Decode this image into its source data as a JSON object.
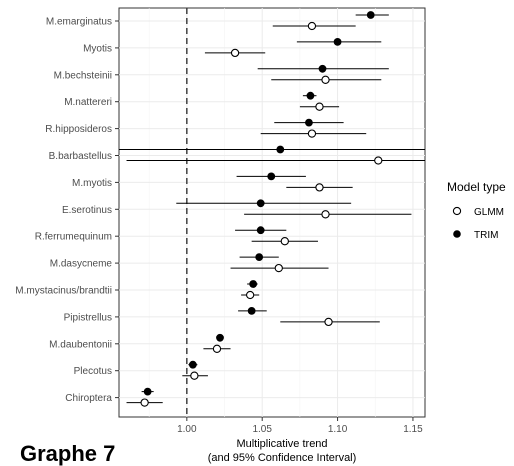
{
  "caption": "Graphe 7",
  "chart_data": {
    "type": "scatter",
    "title": "",
    "xlabel_line1": "Multiplicative trend",
    "xlabel_line2": "(and 95% Confidence Interval)",
    "ylabel": "",
    "xlim": [
      0.955,
      1.158
    ],
    "x_ticks": [
      1.0,
      1.05,
      1.1,
      1.15
    ],
    "x_tick_labels": [
      "1.00",
      "1.05",
      "1.10",
      "1.15"
    ],
    "reference_line": 1.0,
    "grid": true,
    "legend_position": "right",
    "legend_title": "Model type",
    "series": [
      {
        "name": "GLMM",
        "marker": "open-circle",
        "color": "#000000"
      },
      {
        "name": "TRIM",
        "marker": "filled-circle",
        "color": "#000000"
      }
    ],
    "categories": [
      "M.emarginatus",
      "Myotis",
      "M.bechsteinii",
      "M.nattereri",
      "R.hipposideros",
      "B.barbastellus",
      "M.myotis",
      "E.serotinus",
      "R.ferrumequinum",
      "M.dasycneme",
      "M.mystacinus/brandtii",
      "Pipistrellus",
      "M.daubentonii",
      "Plecotus",
      "Chiroptera"
    ],
    "points": [
      {
        "category": "M.emarginatus",
        "trim": {
          "est": 1.122,
          "lo": 1.112,
          "hi": 1.134
        },
        "glmm": {
          "est": 1.083,
          "lo": 1.057,
          "hi": 1.112
        }
      },
      {
        "category": "Myotis",
        "trim": {
          "est": 1.1,
          "lo": 1.073,
          "hi": 1.129
        },
        "glmm": {
          "est": 1.032,
          "lo": 1.012,
          "hi": 1.052
        }
      },
      {
        "category": "M.bechsteinii",
        "trim": {
          "est": 1.09,
          "lo": 1.047,
          "hi": 1.134
        },
        "glmm": {
          "est": 1.092,
          "lo": 1.056,
          "hi": 1.129
        }
      },
      {
        "category": "M.nattereri",
        "trim": {
          "est": 1.082,
          "lo": 1.077,
          "hi": 1.086
        },
        "glmm": {
          "est": 1.088,
          "lo": 1.075,
          "hi": 1.101
        }
      },
      {
        "category": "R.hipposideros",
        "trim": {
          "est": 1.081,
          "lo": 1.058,
          "hi": 1.104
        },
        "glmm": {
          "est": 1.083,
          "lo": 1.049,
          "hi": 1.119
        }
      },
      {
        "category": "B.barbastellus",
        "trim": {
          "est": 1.062,
          "lo": 0.955,
          "hi": 1.158
        },
        "glmm": {
          "est": 1.127,
          "lo": 0.96,
          "hi": 1.158
        }
      },
      {
        "category": "M.myotis",
        "trim": {
          "est": 1.056,
          "lo": 1.033,
          "hi": 1.079
        },
        "glmm": {
          "est": 1.088,
          "lo": 1.066,
          "hi": 1.11
        }
      },
      {
        "category": "E.serotinus",
        "trim": {
          "est": 1.049,
          "lo": 0.993,
          "hi": 1.109
        },
        "glmm": {
          "est": 1.092,
          "lo": 1.038,
          "hi": 1.149
        }
      },
      {
        "category": "R.ferrumequinum",
        "trim": {
          "est": 1.049,
          "lo": 1.032,
          "hi": 1.066
        },
        "glmm": {
          "est": 1.065,
          "lo": 1.043,
          "hi": 1.087
        }
      },
      {
        "category": "M.dasycneme",
        "trim": {
          "est": 1.048,
          "lo": 1.035,
          "hi": 1.061
        },
        "glmm": {
          "est": 1.061,
          "lo": 1.029,
          "hi": 1.094
        }
      },
      {
        "category": "M.mystacinus/brandtii",
        "trim": {
          "est": 1.044,
          "lo": 1.04,
          "hi": 1.047
        },
        "glmm": {
          "est": 1.042,
          "lo": 1.036,
          "hi": 1.048
        }
      },
      {
        "category": "Pipistrellus",
        "trim": {
          "est": 1.043,
          "lo": 1.034,
          "hi": 1.053
        },
        "glmm": {
          "est": 1.094,
          "lo": 1.062,
          "hi": 1.128
        }
      },
      {
        "category": "M.daubentonii",
        "trim": {
          "est": 1.022,
          "lo": 1.02,
          "hi": 1.024
        },
        "glmm": {
          "est": 1.02,
          "lo": 1.011,
          "hi": 1.029
        }
      },
      {
        "category": "Plecotus",
        "trim": {
          "est": 1.004,
          "lo": 1.001,
          "hi": 1.007
        },
        "glmm": {
          "est": 1.005,
          "lo": 0.997,
          "hi": 1.014
        }
      },
      {
        "category": "Chiroptera",
        "trim": {
          "est": 0.974,
          "lo": 0.97,
          "hi": 0.978
        },
        "glmm": {
          "est": 0.972,
          "lo": 0.96,
          "hi": 0.984
        }
      }
    ]
  }
}
